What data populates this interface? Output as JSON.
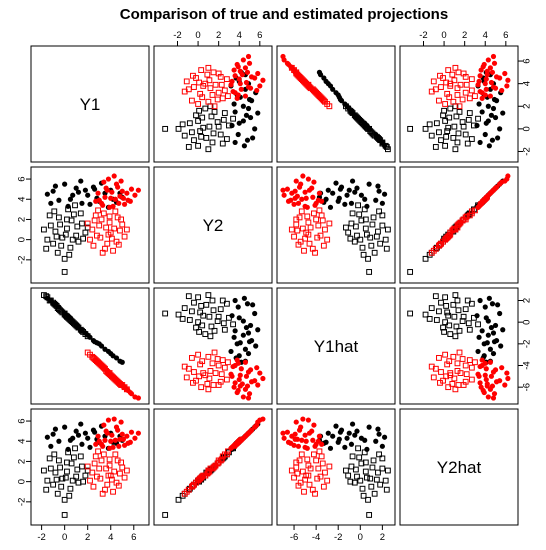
{
  "chart_data": {
    "type": "scatter",
    "layout": "scatterplot-matrix",
    "title": "Comparison of true and estimated projections",
    "variables": [
      "Y1",
      "Y2",
      "Y1hat",
      "Y2hat"
    ],
    "ticks": {
      "Y1": [
        -2,
        0,
        2,
        4,
        6
      ],
      "Y2": [
        -2,
        0,
        2,
        4,
        6
      ],
      "Y1hat": [
        -6,
        -4,
        -2,
        0,
        2
      ],
      "Y2hat": [
        -2,
        0,
        2,
        4,
        6
      ]
    },
    "ranges": {
      "Y1": [
        -2.4,
        6.8
      ],
      "Y2": [
        -3.7,
        6.6
      ],
      "Y1hat": [
        -7.0,
        2.6
      ],
      "Y2hat": [
        -3.7,
        6.6
      ]
    },
    "axes": {
      "top": [
        "Y2",
        "Y2hat"
      ],
      "bottom": [
        "Y1",
        "Y1hat"
      ],
      "left": [
        "Y2",
        "Y2hat"
      ],
      "right": [
        "Y1",
        "Y1hat"
      ]
    },
    "colors": {
      "group1": "#000000",
      "group2": "#ff0000"
    },
    "markers": {
      "square": "open square",
      "dot": "filled circle"
    },
    "series": [
      {
        "color": "#000000",
        "marker": "square",
        "points": [
          [
            -1.2,
            1.4,
            2.0,
            1.3
          ],
          [
            -0.8,
            0.8,
            1.6,
            0.9
          ],
          [
            -0.5,
            2.2,
            1.2,
            2.1
          ],
          [
            -1.0,
            -0.4,
            1.8,
            -0.3
          ],
          [
            -0.2,
            0.2,
            0.9,
            0.3
          ],
          [
            0.2,
            1.1,
            0.5,
            1.0
          ],
          [
            0.5,
            -0.8,
            0.2,
            -0.7
          ],
          [
            -0.6,
            -1.3,
            1.3,
            -1.2
          ],
          [
            1.0,
            0.4,
            -0.3,
            0.5
          ],
          [
            0.8,
            2.5,
            -0.1,
            2.4
          ],
          [
            -1.5,
            0.0,
            2.3,
            0.1
          ],
          [
            0.0,
            -1.9,
            0.7,
            -1.8
          ],
          [
            1.5,
            1.6,
            -0.8,
            1.5
          ],
          [
            0.3,
            3.0,
            0.4,
            2.9
          ],
          [
            -0.9,
            2.8,
            1.7,
            2.7
          ],
          [
            1.2,
            -0.2,
            -0.5,
            -0.1
          ],
          [
            0.6,
            1.9,
            0.1,
            1.8
          ],
          [
            -0.3,
            -0.6,
            1.0,
            -0.5
          ],
          [
            1.8,
            0.7,
            -1.1,
            0.6
          ],
          [
            -1.8,
            1.0,
            2.5,
            1.1
          ],
          [
            0.1,
            0.5,
            0.6,
            0.4
          ],
          [
            0.9,
            3.4,
            -0.2,
            3.3
          ],
          [
            -0.4,
            1.5,
            1.1,
            1.4
          ],
          [
            1.4,
            2.6,
            -0.7,
            2.5
          ],
          [
            0.4,
            -1.5,
            0.3,
            -1.4
          ],
          [
            -1.3,
            2.4,
            2.0,
            2.3
          ],
          [
            0.7,
            0.0,
            0.0,
            0.1
          ],
          [
            2.0,
            1.2,
            -1.3,
            1.1
          ],
          [
            0.0,
            -3.2,
            0.8,
            -3.3
          ],
          [
            -0.7,
            0.3,
            1.5,
            0.2
          ],
          [
            1.1,
            1.3,
            -0.4,
            1.2
          ],
          [
            0.2,
            2.0,
            0.5,
            1.9
          ],
          [
            -1.6,
            -0.9,
            2.4,
            -0.8
          ],
          [
            1.6,
            0.1,
            -0.9,
            0.0
          ]
        ]
      },
      {
        "color": "#000000",
        "marker": "dot",
        "points": [
          [
            1.0,
            5.1,
            -0.3,
            5.0
          ],
          [
            2.0,
            4.4,
            -1.2,
            4.3
          ],
          [
            3.0,
            3.8,
            -2.0,
            3.9
          ],
          [
            4.0,
            4.9,
            -2.9,
            4.8
          ],
          [
            5.0,
            4.2,
            -3.7,
            4.1
          ],
          [
            -1.0,
            4.8,
            1.7,
            4.7
          ],
          [
            -0.5,
            3.9,
            1.4,
            4.0
          ],
          [
            0.0,
            5.5,
            0.8,
            5.4
          ],
          [
            1.5,
            3.6,
            -0.8,
            3.7
          ],
          [
            2.5,
            5.2,
            -1.7,
            5.1
          ],
          [
            3.5,
            4.6,
            -2.5,
            4.5
          ],
          [
            4.5,
            3.7,
            -3.3,
            3.8
          ],
          [
            -1.5,
            4.5,
            2.2,
            4.4
          ],
          [
            0.5,
            4.0,
            0.4,
            4.1
          ],
          [
            1.2,
            4.7,
            -0.5,
            4.6
          ],
          [
            2.2,
            3.5,
            -1.4,
            3.4
          ],
          [
            3.2,
            5.6,
            -2.2,
            5.5
          ],
          [
            4.2,
            4.0,
            -3.1,
            3.9
          ],
          [
            -0.8,
            5.3,
            1.6,
            5.2
          ],
          [
            0.3,
            3.3,
            0.6,
            3.2
          ],
          [
            1.8,
            4.9,
            -1.0,
            4.8
          ],
          [
            2.8,
            4.1,
            -1.9,
            4.2
          ],
          [
            3.8,
            3.2,
            -2.7,
            3.3
          ],
          [
            -1.2,
            3.6,
            2.0,
            3.5
          ],
          [
            0.7,
            4.4,
            0.1,
            4.3
          ],
          [
            2.6,
            5.0,
            -1.8,
            4.9
          ],
          [
            4.8,
            4.6,
            -3.6,
            4.5
          ],
          [
            1.4,
            5.8,
            -0.7,
            5.7
          ]
        ]
      },
      {
        "color": "#ff0000",
        "marker": "square",
        "points": [
          [
            3.6,
            1.2,
            -4.5,
            1.3
          ],
          [
            4.0,
            0.7,
            -4.9,
            0.6
          ],
          [
            3.2,
            2.0,
            -4.0,
            2.1
          ],
          [
            4.5,
            -0.2,
            -5.4,
            -0.1
          ],
          [
            2.8,
            0.4,
            -3.6,
            0.5
          ],
          [
            3.9,
            1.7,
            -4.7,
            1.6
          ],
          [
            4.8,
            0.9,
            -5.7,
            0.8
          ],
          [
            2.5,
            -0.6,
            -3.3,
            -0.5
          ],
          [
            3.4,
            2.6,
            -4.2,
            2.7
          ],
          [
            5.2,
            0.3,
            -6.0,
            0.4
          ],
          [
            4.2,
            -1.1,
            -5.1,
            -1.0
          ],
          [
            3.0,
            1.4,
            -3.8,
            1.3
          ],
          [
            2.2,
            0.0,
            -3.0,
            0.1
          ],
          [
            4.6,
            2.2,
            -5.5,
            2.1
          ],
          [
            3.7,
            -0.4,
            -4.6,
            -0.3
          ],
          [
            2.9,
            2.9,
            -3.7,
            3.0
          ],
          [
            5.0,
            1.5,
            -5.8,
            1.4
          ],
          [
            4.1,
            0.1,
            -5.0,
            0.2
          ],
          [
            3.3,
            -1.3,
            -4.1,
            -1.2
          ],
          [
            2.6,
            1.9,
            -3.4,
            1.8
          ],
          [
            4.4,
            2.8,
            -5.3,
            2.7
          ],
          [
            3.8,
            0.5,
            -4.7,
            0.6
          ],
          [
            2.4,
            1.0,
            -3.2,
            0.9
          ],
          [
            5.4,
            1.0,
            -6.2,
            1.1
          ],
          [
            3.1,
            0.2,
            -3.9,
            0.3
          ],
          [
            4.3,
            1.1,
            -5.2,
            1.0
          ],
          [
            2.7,
            2.4,
            -3.5,
            2.5
          ],
          [
            3.5,
            -0.9,
            -4.3,
            -0.8
          ],
          [
            4.7,
            -0.5,
            -5.6,
            -0.4
          ],
          [
            2.0,
            1.6,
            -2.8,
            1.5
          ],
          [
            3.9,
            2.3,
            -4.8,
            2.2
          ],
          [
            4.9,
            2.0,
            -5.8,
            1.9
          ]
        ]
      },
      {
        "color": "#ff0000",
        "marker": "dot",
        "points": [
          [
            4.0,
            4.1,
            -4.9,
            4.0
          ],
          [
            5.0,
            4.8,
            -5.9,
            4.7
          ],
          [
            3.2,
            3.6,
            -4.0,
            3.7
          ],
          [
            4.5,
            5.5,
            -5.4,
            5.4
          ],
          [
            5.5,
            3.9,
            -6.3,
            3.8
          ],
          [
            3.7,
            4.9,
            -4.6,
            4.8
          ],
          [
            4.8,
            4.3,
            -5.7,
            4.2
          ],
          [
            2.9,
            4.6,
            -3.7,
            4.5
          ],
          [
            5.8,
            5.0,
            -6.6,
            4.9
          ],
          [
            4.2,
            3.3,
            -5.0,
            3.4
          ],
          [
            3.4,
            5.7,
            -4.2,
            5.6
          ],
          [
            5.2,
            3.5,
            -6.0,
            3.6
          ],
          [
            4.4,
            4.0,
            -5.3,
            4.1
          ],
          [
            3.0,
            3.9,
            -3.8,
            4.0
          ],
          [
            6.1,
            4.4,
            -6.9,
            4.3
          ],
          [
            4.6,
            5.2,
            -5.5,
            5.1
          ],
          [
            3.9,
            3.2,
            -4.8,
            3.3
          ],
          [
            5.4,
            4.6,
            -6.2,
            4.5
          ],
          [
            3.5,
            4.2,
            -4.3,
            4.1
          ],
          [
            4.9,
            5.8,
            -5.8,
            5.9
          ],
          [
            2.7,
            3.8,
            -3.5,
            3.7
          ],
          [
            5.7,
            3.8,
            -6.5,
            3.9
          ],
          [
            4.1,
            4.7,
            -5.0,
            4.6
          ],
          [
            3.3,
            3.4,
            -4.1,
            3.5
          ],
          [
            4.7,
            3.6,
            -5.6,
            3.5
          ],
          [
            6.4,
            4.9,
            -7.0,
            4.8
          ],
          [
            3.8,
            6.0,
            -4.7,
            6.1
          ],
          [
            5.1,
            4.1,
            -5.9,
            4.2
          ],
          [
            4.3,
            6.3,
            -5.2,
            6.2
          ],
          [
            3.6,
            5.1,
            -4.4,
            5.0
          ]
        ]
      }
    ]
  }
}
